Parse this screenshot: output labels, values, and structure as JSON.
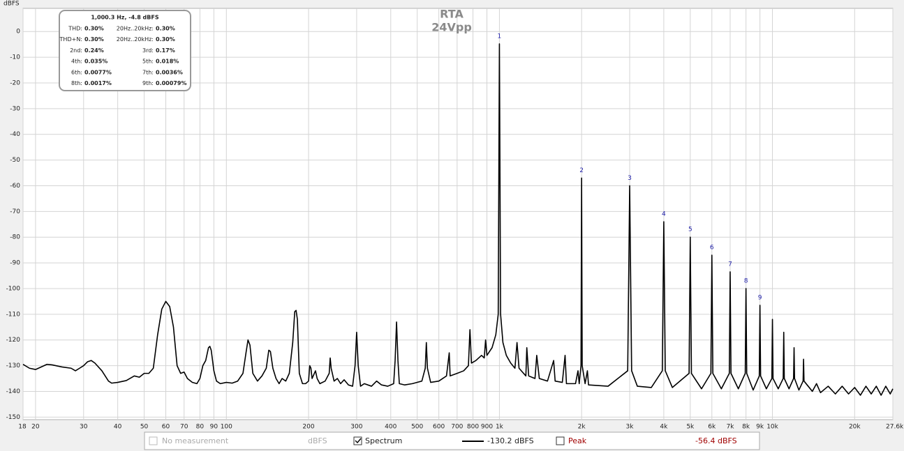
{
  "chart_data": {
    "type": "line",
    "title": "RTA",
    "subtitle": "24Vpp",
    "y_label": "dBFS",
    "log_x": true,
    "grid": true,
    "xlim": [
      18,
      27600
    ],
    "ylim": [
      -151,
      9
    ],
    "xticks": [
      18,
      20,
      30,
      40,
      50,
      60,
      70,
      80,
      90,
      100,
      200,
      300,
      400,
      500,
      600,
      700,
      800,
      900,
      {
        "value": 1000,
        "label": "1k"
      },
      {
        "value": 2000,
        "label": "2k"
      },
      {
        "value": 3000,
        "label": "3k"
      },
      {
        "value": 4000,
        "label": "4k"
      },
      {
        "value": 5000,
        "label": "5k"
      },
      {
        "value": 6000,
        "label": "6k"
      },
      {
        "value": 7000,
        "label": "7k"
      },
      {
        "value": 8000,
        "label": "8k"
      },
      {
        "value": 9000,
        "label": "9k"
      },
      {
        "value": 10000,
        "label": "10k"
      },
      {
        "value": 20000,
        "label": "20k"
      },
      {
        "value": 27600,
        "label": "27.6k Hz"
      }
    ],
    "yticks": [
      0,
      -10,
      -20,
      -30,
      -40,
      -50,
      -60,
      -70,
      -80,
      -90,
      -100,
      -110,
      -120,
      -130,
      -140,
      -150
    ],
    "series": [
      {
        "name": "Spectrum",
        "color": "#000000",
        "x": [
          18,
          19,
          20,
          21,
          22,
          23,
          25,
          27,
          28,
          29,
          30,
          31,
          32,
          33,
          35,
          37,
          38,
          40,
          43,
          46,
          48,
          50,
          52,
          54,
          56,
          58,
          60,
          62,
          64,
          66,
          68,
          70,
          72,
          75,
          78,
          80,
          82,
          84,
          86,
          87,
          88,
          90,
          92,
          95,
          100,
          105,
          110,
          115,
          118,
          120,
          122,
          125,
          130,
          135,
          140,
          143,
          145,
          148,
          152,
          156,
          160,
          165,
          170,
          175,
          178,
          180,
          182,
          185,
          190,
          195,
          200,
          202,
          204,
          206,
          210,
          212,
          215,
          220,
          230,
          238,
          240,
          242,
          248,
          255,
          262,
          270,
          280,
          290,
          296,
          300,
          304,
          310,
          320,
          340,
          355,
          370,
          390,
          410,
          415,
          420,
          425,
          430,
          450,
          480,
          500,
          520,
          535,
          540,
          545,
          560,
          600,
          640,
          655,
          660,
          700,
          740,
          770,
          780,
          790,
          820,
          860,
          880,
          890,
          900,
          940,
          970,
          990,
          1000,
          1010,
          1030,
          1060,
          1100,
          1140,
          1160,
          1180,
          1250,
          1260,
          1280,
          1350,
          1370,
          1400,
          1500,
          1580,
          1600,
          1700,
          1740,
          1760,
          1900,
          1940,
          1960,
          1990,
          2000,
          2010,
          2060,
          2100,
          2120,
          2500,
          2950,
          3000,
          3050,
          3200,
          3600,
          3950,
          4000,
          4050,
          4300,
          4950,
          5000,
          5050,
          5500,
          5950,
          6000,
          6050,
          6500,
          6950,
          7000,
          7050,
          7500,
          7950,
          8000,
          8050,
          8500,
          8950,
          9000,
          9050,
          9500,
          9950,
          10000,
          10050,
          10500,
          10950,
          11000,
          11050,
          11500,
          11950,
          12000,
          12050,
          12500,
          12950,
          13000,
          13050,
          14000,
          14500,
          15000,
          16000,
          17000,
          18000,
          19000,
          20000,
          21000,
          22000,
          23000,
          24000,
          25000,
          26000,
          27000,
          27600
        ],
        "values": [
          -129.5,
          -131,
          -131.5,
          -130.5,
          -129.5,
          -129.7,
          -130.5,
          -131,
          -132,
          -131,
          -130,
          -128.5,
          -128,
          -129,
          -132,
          -136,
          -136.8,
          -136.5,
          -135.8,
          -134,
          -134.5,
          -133,
          -133,
          -131,
          -118,
          -108,
          -105,
          -107,
          -115,
          -130,
          -133,
          -132.5,
          -135,
          -136.5,
          -137,
          -135,
          -130,
          -128,
          -123,
          -122.5,
          -124,
          -132,
          -136,
          -137,
          -136.5,
          -136.8,
          -136,
          -133,
          -125,
          -120,
          -122,
          -133,
          -136,
          -134,
          -131,
          -124,
          -124.5,
          -131,
          -135,
          -137,
          -135,
          -136,
          -133,
          -121,
          -109,
          -108.5,
          -112,
          -133,
          -137,
          -137,
          -136,
          -130,
          -131,
          -135,
          -133,
          -132,
          -135,
          -137,
          -136,
          -133,
          -127,
          -131,
          -136,
          -135,
          -137,
          -135.5,
          -137.5,
          -138,
          -130,
          -117,
          -130,
          -138,
          -137,
          -138,
          -136,
          -137.5,
          -138,
          -137,
          -128,
          -113,
          -128,
          -137,
          -137.5,
          -137,
          -136.5,
          -136,
          -131,
          -121,
          -131,
          -136.5,
          -136,
          -134,
          -125,
          -134,
          -133,
          -132,
          -130,
          -116,
          -129,
          -128,
          -126,
          -127,
          -120,
          -126,
          -123,
          -118,
          -110,
          -4.8,
          -110,
          -121,
          -126,
          -129,
          -131,
          -121,
          -131,
          -134,
          -123,
          -134,
          -135,
          -126,
          -135,
          -136,
          -128,
          -136,
          -136.5,
          -126,
          -137,
          -137,
          -132,
          -137,
          -130,
          -57,
          -130,
          -137,
          -132,
          -137.5,
          -138,
          -132,
          -60,
          -132,
          -138,
          -138.5,
          -132,
          -74,
          -132,
          -138.5,
          -133,
          -80,
          -133,
          -139,
          -133,
          -87,
          -133,
          -139,
          -133,
          -93.5,
          -133,
          -139,
          -133,
          -100,
          -133,
          -139.5,
          -134,
          -106.5,
          -134,
          -139,
          -135,
          -112,
          -135,
          -139,
          -135,
          -117,
          -135,
          -139,
          -135,
          -123,
          -135,
          -139.5,
          -136,
          -127.5,
          -136,
          -140,
          -137,
          -140.5,
          -138,
          -141,
          -138,
          -141,
          -138.5,
          -141.5,
          -138,
          -141,
          -138,
          -141.5,
          -138,
          -141,
          -139
        ]
      }
    ],
    "peak_labels": [
      {
        "label": "1",
        "x": 1000,
        "y": -4.8
      },
      {
        "label": "2",
        "x": 2000,
        "y": -57
      },
      {
        "label": "3",
        "x": 3000,
        "y": -60
      },
      {
        "label": "4",
        "x": 4000,
        "y": -74
      },
      {
        "label": "5",
        "x": 5000,
        "y": -80
      },
      {
        "label": "6",
        "x": 6000,
        "y": -87
      },
      {
        "label": "7",
        "x": 7000,
        "y": -93.5
      },
      {
        "label": "8",
        "x": 8000,
        "y": -100
      },
      {
        "label": "9",
        "x": 9000,
        "y": -106.5
      }
    ],
    "info_box": {
      "header": "1,000.3 Hz, -4.8 dBFS",
      "rows": [
        [
          "THD:",
          "0.30%",
          "20Hz..20kHz:",
          "0.30%"
        ],
        [
          "THD+N:",
          "0.30%",
          "20Hz..20kHz:",
          "0.30%"
        ],
        [
          "2nd:",
          "0.24%",
          "3rd:",
          "0.17%"
        ],
        [
          "4th:",
          "0.035%",
          "5th:",
          "0.018%"
        ],
        [
          "6th:",
          "0.0077%",
          "7th:",
          "0.0036%"
        ],
        [
          "8th:",
          "0.0017%",
          "9th:",
          "0.00079%"
        ]
      ]
    },
    "legend": {
      "no_measurement": "No measurement",
      "unit": "dBFS",
      "spectrum_value": "-130.2 dBFS",
      "peak": "Peak",
      "peak_value": "-56.4 dBFS"
    }
  }
}
